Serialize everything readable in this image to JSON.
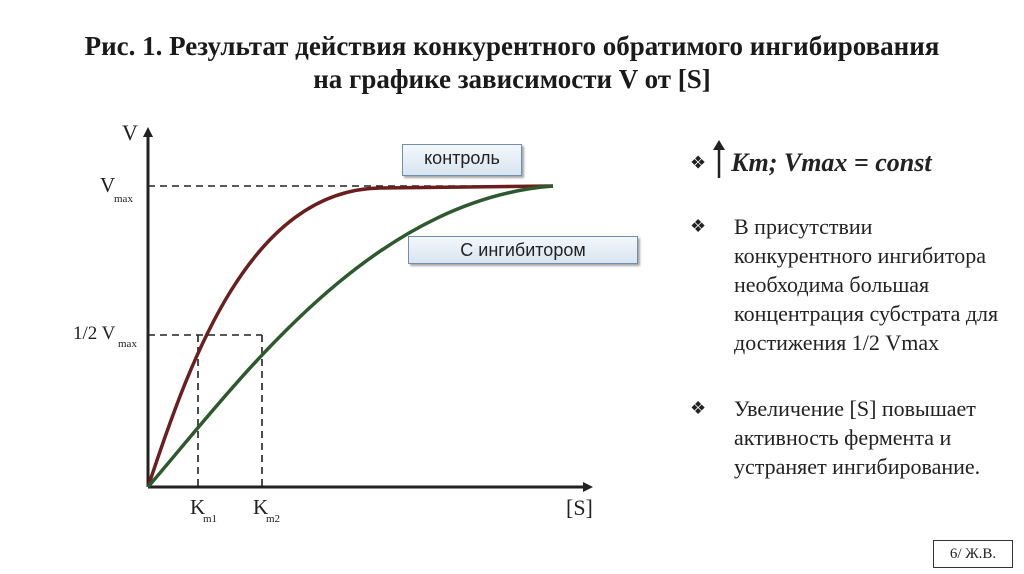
{
  "title": {
    "line1": "Рис. 1. Результат действия конкурентного обратимого ингибирования",
    "line2": "на графике зависимости V от [S]"
  },
  "diagram": {
    "y_axis_label": "V",
    "x_axis_label": "[S]",
    "vmax_label": "V",
    "vmax_sub": "max",
    "half_vmax_label": "1/2 V",
    "half_vmax_sub": "max",
    "km1_label": "K",
    "km1_sub": "m1",
    "km2_label": "K",
    "km2_sub": "m2",
    "control_label": "контроль",
    "inhibitor_label": "С ингибитором",
    "colors": {
      "control": "#6b1e1e",
      "inhibitor": "#2d5a2d",
      "axis": "#222222"
    }
  },
  "bullets": {
    "symbol": "❖",
    "arrow_icon": "up-arrow-icon",
    "first": "Km; Vmax = const",
    "items": [
      "В присутствии конкурентного ингибитора необходима большая концентрация субстрата для достижения 1/2 Vmax",
      "Увеличение [S] повышает активность фермента и устраняет ингибирование."
    ]
  },
  "footer": "6/ Ж.В."
}
